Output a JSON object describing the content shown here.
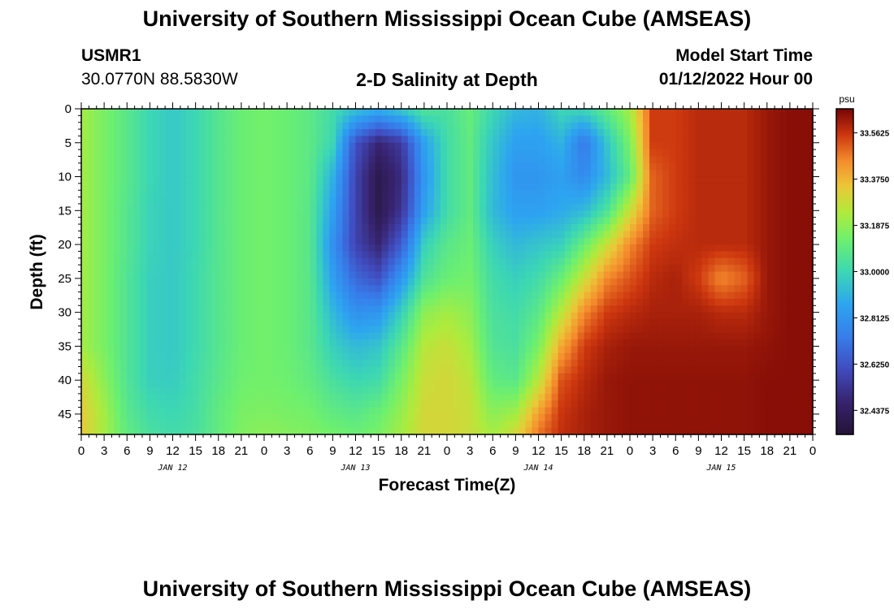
{
  "header": {
    "title": "University of Southern Mississippi Ocean Cube (AMSEAS)",
    "station_id": "USMR1",
    "station_coords": "30.0770N  88.5830W",
    "chart_name": "2-D Salinity at Depth",
    "start_label": "Model Start Time",
    "start_value": "01/12/2022 Hour 00"
  },
  "footer": {
    "title": "University of Southern Mississippi Ocean Cube (AMSEAS)"
  },
  "chart_data": {
    "type": "heatmap",
    "title": "2-D Salinity at Depth",
    "xlabel": "Forecast Time(Z)",
    "ylabel": "Depth (ft)",
    "xlim": [
      0,
      96
    ],
    "ylim": [
      0,
      48
    ],
    "x_tick_labels": [
      "0",
      "3",
      "6",
      "9",
      "12",
      "15",
      "18",
      "21",
      "0",
      "3",
      "6",
      "9",
      "12",
      "15",
      "18",
      "21",
      "0",
      "3",
      "6",
      "9",
      "12",
      "15",
      "18",
      "21",
      "0",
      "3",
      "6",
      "9",
      "12",
      "15",
      "18",
      "21",
      "0"
    ],
    "y_tick_labels": [
      "0",
      "5",
      "10",
      "15",
      "20",
      "25",
      "30",
      "35",
      "40",
      "45"
    ],
    "day_labels": [
      "JAN 12",
      "JAN 13",
      "JAN 14",
      "JAN 15"
    ],
    "colorbar": {
      "unit": "psu",
      "range": [
        32.34,
        33.66
      ],
      "tick_labels": [
        "33.5625",
        "33.3750",
        "33.1875",
        "33.0000",
        "32.8125",
        "32.6250",
        "32.4375"
      ],
      "tick_values": [
        33.5625,
        33.375,
        33.1875,
        33.0,
        32.8125,
        32.625,
        32.4375
      ]
    },
    "depths_ft": [
      0,
      5,
      10,
      15,
      20,
      25,
      30,
      35,
      40,
      45,
      48
    ],
    "times_h": [
      0,
      3,
      6,
      9,
      12,
      15,
      18,
      21,
      24,
      27,
      30,
      33,
      36,
      39,
      42,
      45,
      48,
      51,
      54,
      57,
      60,
      63,
      66,
      69,
      72,
      75,
      78,
      81,
      84,
      87,
      90,
      93,
      96
    ],
    "salinity_psu": [
      [
        33.22,
        33.15,
        33.08,
        33.0,
        32.96,
        33.0,
        33.07,
        33.12,
        33.14,
        33.12,
        33.09,
        33.02,
        32.95,
        32.9,
        32.97,
        33.06,
        33.04,
        33.11,
        33.0,
        32.92,
        32.9,
        33.0,
        33.0,
        33.1,
        33.22,
        33.55,
        33.55,
        33.58,
        33.58,
        33.58,
        33.62,
        33.64,
        33.64
      ],
      [
        33.22,
        33.15,
        33.08,
        33.0,
        32.96,
        33.0,
        33.07,
        33.12,
        33.14,
        33.12,
        33.09,
        33.0,
        32.62,
        32.48,
        32.55,
        32.85,
        33.02,
        33.1,
        32.95,
        32.85,
        32.85,
        32.9,
        32.72,
        32.95,
        33.15,
        33.55,
        33.55,
        33.58,
        33.58,
        33.58,
        33.62,
        33.64,
        33.64
      ],
      [
        33.22,
        33.15,
        33.08,
        33.0,
        32.96,
        33.0,
        33.07,
        33.12,
        33.14,
        33.12,
        33.09,
        32.9,
        32.58,
        32.4,
        32.5,
        32.82,
        33.02,
        33.1,
        32.93,
        32.82,
        32.82,
        32.85,
        32.78,
        32.92,
        33.1,
        33.5,
        33.55,
        33.58,
        33.58,
        33.58,
        33.62,
        33.64,
        33.64
      ],
      [
        33.22,
        33.15,
        33.07,
        32.99,
        32.96,
        33.0,
        33.07,
        33.12,
        33.14,
        33.12,
        33.08,
        32.85,
        32.58,
        32.4,
        32.53,
        32.85,
        33.02,
        33.1,
        32.92,
        32.85,
        32.85,
        32.88,
        32.92,
        33.05,
        33.28,
        33.5,
        33.55,
        33.58,
        33.58,
        33.58,
        33.62,
        33.64,
        33.64
      ],
      [
        33.22,
        33.15,
        33.07,
        32.99,
        32.96,
        33.0,
        33.07,
        33.12,
        33.14,
        33.12,
        33.08,
        32.8,
        32.58,
        32.48,
        32.65,
        32.98,
        33.08,
        33.12,
        32.98,
        32.92,
        32.95,
        32.98,
        33.12,
        33.28,
        33.45,
        33.55,
        33.57,
        33.58,
        33.58,
        33.58,
        33.62,
        33.64,
        33.64
      ],
      [
        33.22,
        33.15,
        33.06,
        32.98,
        32.96,
        33.01,
        33.07,
        33.12,
        33.14,
        33.12,
        33.08,
        32.85,
        32.68,
        32.62,
        32.82,
        33.05,
        33.12,
        33.14,
        33.02,
        32.98,
        33.02,
        33.12,
        33.28,
        33.45,
        33.52,
        33.58,
        33.6,
        33.55,
        33.45,
        33.5,
        33.62,
        33.64,
        33.64
      ],
      [
        33.22,
        33.15,
        33.06,
        32.98,
        32.96,
        33.01,
        33.07,
        33.12,
        33.14,
        33.12,
        33.08,
        32.92,
        32.8,
        32.82,
        32.98,
        33.18,
        33.22,
        33.18,
        33.04,
        33.02,
        33.08,
        33.25,
        33.45,
        33.55,
        33.58,
        33.6,
        33.6,
        33.6,
        33.58,
        33.58,
        33.62,
        33.64,
        33.64
      ],
      [
        33.22,
        33.15,
        33.06,
        32.98,
        32.96,
        33.01,
        33.07,
        33.12,
        33.14,
        33.12,
        33.08,
        32.98,
        32.92,
        32.95,
        33.08,
        33.25,
        33.28,
        33.22,
        33.06,
        33.04,
        33.15,
        33.4,
        33.55,
        33.6,
        33.62,
        33.62,
        33.62,
        33.62,
        33.62,
        33.62,
        33.63,
        33.64,
        33.64
      ],
      [
        33.3,
        33.18,
        33.06,
        32.98,
        32.97,
        33.02,
        33.08,
        33.13,
        33.14,
        33.13,
        33.1,
        33.04,
        33.0,
        33.02,
        33.15,
        33.28,
        33.3,
        33.26,
        33.1,
        33.08,
        33.25,
        33.52,
        33.58,
        33.62,
        33.63,
        33.63,
        33.63,
        33.63,
        33.63,
        33.63,
        33.64,
        33.64,
        33.64
      ],
      [
        33.34,
        33.22,
        33.08,
        33.02,
        33.0,
        33.03,
        33.1,
        33.15,
        33.16,
        33.15,
        33.14,
        33.1,
        33.08,
        33.12,
        33.2,
        33.3,
        33.3,
        33.28,
        33.18,
        33.22,
        33.42,
        33.56,
        33.6,
        33.62,
        33.63,
        33.63,
        33.63,
        33.63,
        33.63,
        33.63,
        33.64,
        33.64,
        33.64
      ],
      [
        33.34,
        33.22,
        33.1,
        33.04,
        33.02,
        33.04,
        33.1,
        33.16,
        33.18,
        33.17,
        33.16,
        33.14,
        33.12,
        33.15,
        33.22,
        33.3,
        33.3,
        33.28,
        33.22,
        33.3,
        33.48,
        33.57,
        33.6,
        33.62,
        33.63,
        33.63,
        33.63,
        33.63,
        33.63,
        33.63,
        33.64,
        33.64,
        33.64
      ]
    ]
  }
}
